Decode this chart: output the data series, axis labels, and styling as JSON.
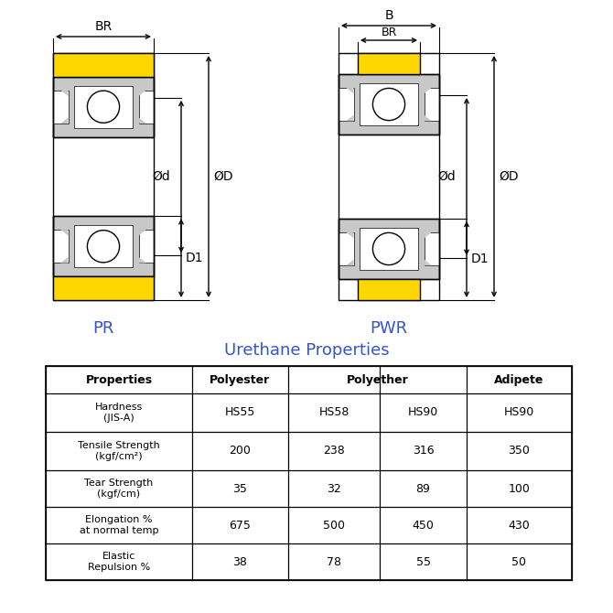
{
  "bg_color": "#ffffff",
  "yellow_color": "#FFD700",
  "light_gray": "#c8c8c8",
  "med_gray": "#b0b0b0",
  "dark_gray": "#888888",
  "line_color": "#000000",
  "blue_color": "#3355cc",
  "table_title": "Urethane Properties",
  "pr_label": "PR",
  "pwr_label": "PWR",
  "table_rows": [
    [
      "Hardness\n(JIS-A)",
      "HS55",
      "HS58",
      "HS90",
      "HS90"
    ],
    [
      "Tensile Strength\n(kgf/cm²)",
      "200",
      "238",
      "316",
      "350"
    ],
    [
      "Tear Strength\n(kgf/cm)",
      "35",
      "32",
      "89",
      "100"
    ],
    [
      "Elongation %\nat normal temp",
      "675",
      "500",
      "450",
      "430"
    ],
    [
      "Elastic\nRepulsion %",
      "38",
      "78",
      "55",
      "50"
    ]
  ]
}
